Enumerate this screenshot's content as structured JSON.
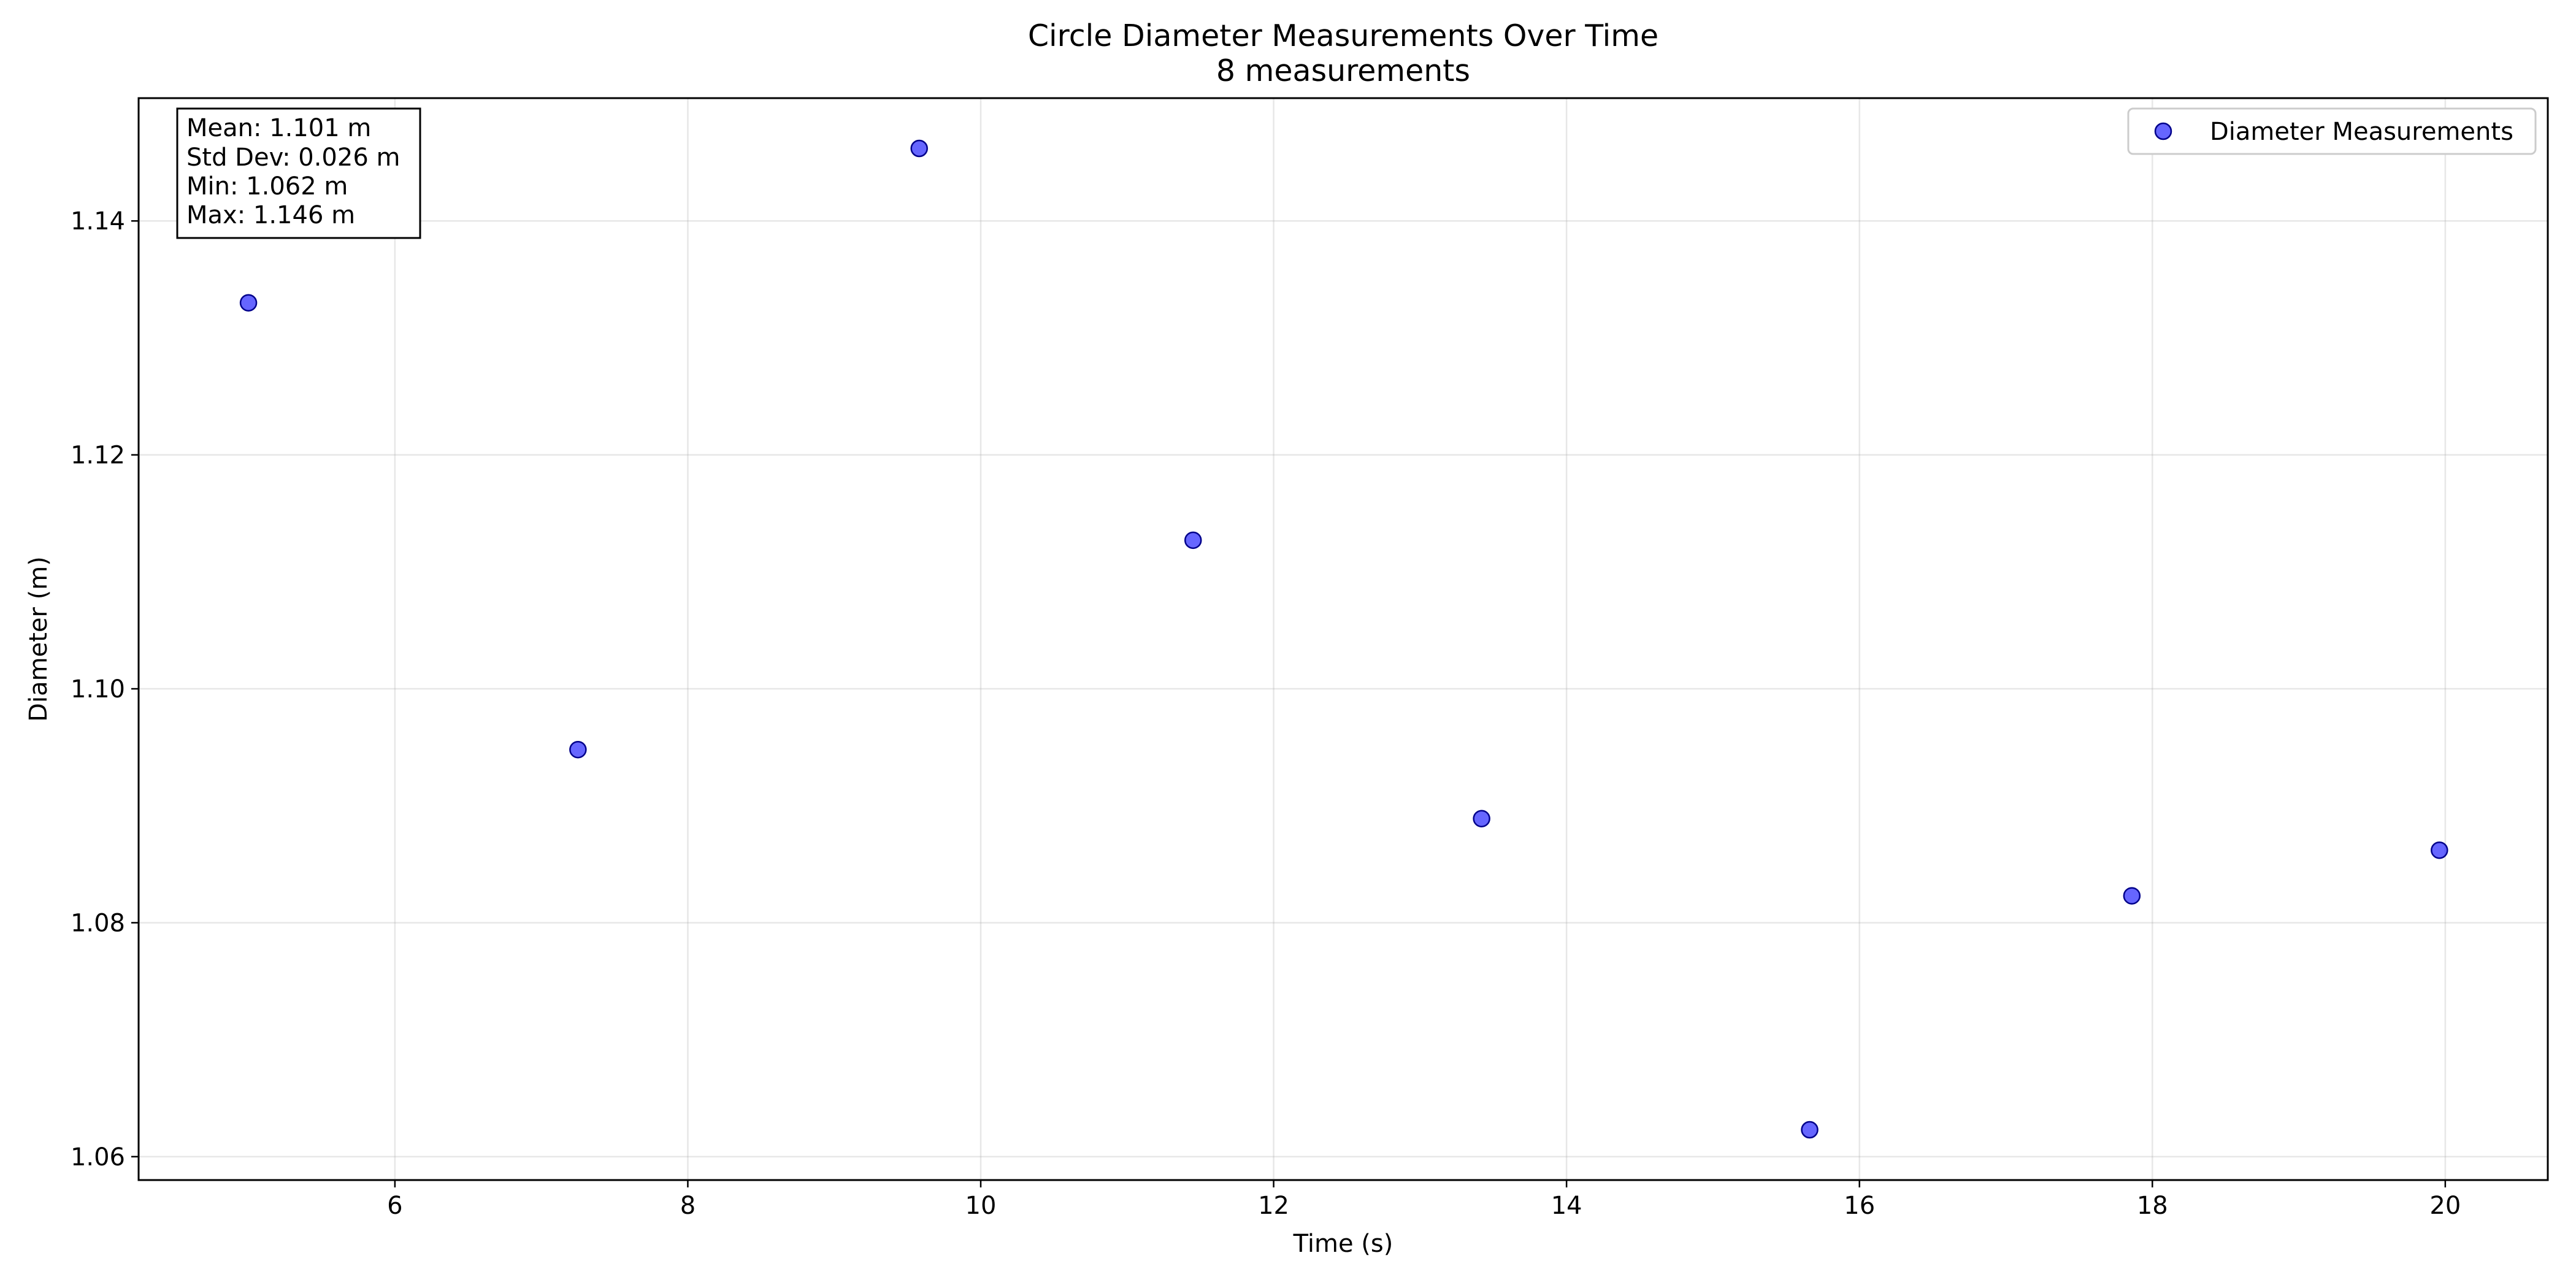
{
  "chart_data": {
    "type": "scatter",
    "title": "Circle Diameter Measurements Over Time",
    "subtitle": "8 measurements",
    "xlabel": "Time (s)",
    "ylabel": "Diameter (m)",
    "xlim": [
      4.25,
      20.7
    ],
    "ylim": [
      1.058,
      1.1505
    ],
    "x_ticks": [
      6,
      8,
      10,
      12,
      14,
      16,
      18,
      20
    ],
    "y_ticks": [
      1.06,
      1.08,
      1.1,
      1.12,
      1.14
    ],
    "grid": true,
    "legend": {
      "position": "top-right"
    },
    "series": [
      {
        "name": "Diameter Measurements",
        "color": "#0000ff",
        "points": [
          {
            "x": 5.0,
            "y": 1.133
          },
          {
            "x": 7.25,
            "y": 1.0948
          },
          {
            "x": 9.58,
            "y": 1.1462
          },
          {
            "x": 11.45,
            "y": 1.1127
          },
          {
            "x": 13.42,
            "y": 1.0889
          },
          {
            "x": 15.66,
            "y": 1.0623
          },
          {
            "x": 17.86,
            "y": 1.0823
          },
          {
            "x": 19.96,
            "y": 1.0862
          }
        ]
      }
    ],
    "stats_box": {
      "position": "top-left",
      "lines": [
        "Mean: 1.101 m",
        "Std Dev: 0.026 m",
        "Min: 1.062 m",
        "Max: 1.146 m"
      ]
    }
  }
}
